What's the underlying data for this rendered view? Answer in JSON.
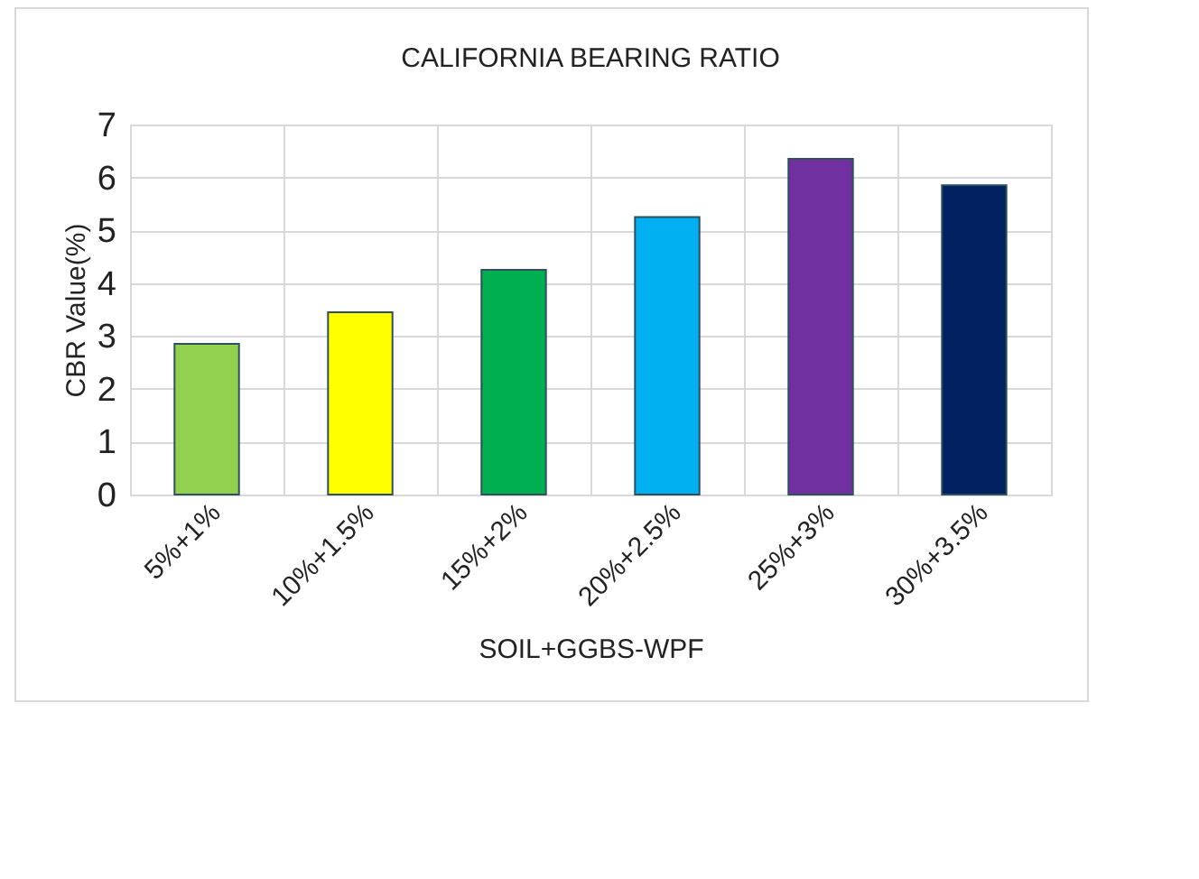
{
  "chart_data": {
    "type": "bar",
    "title": "CALIFORNIA BEARING RATIO",
    "xlabel": "SOIL+GGBS-WPF",
    "ylabel": "CBR  Value(%)",
    "categories": [
      "5%+1%",
      "10%+1.5%",
      "15%+2%",
      "20%+2.5%",
      "25%+3%",
      "30%+3.5%"
    ],
    "values": [
      2.85,
      3.45,
      4.25,
      5.25,
      6.35,
      5.85
    ],
    "colors": [
      "#92d050",
      "#ffff00",
      "#00b050",
      "#00b0f0",
      "#7030a0",
      "#002060"
    ],
    "ylim": [
      0,
      7
    ],
    "yticks": [
      0,
      1,
      2,
      3,
      4,
      5,
      6,
      7
    ],
    "grid": true
  }
}
